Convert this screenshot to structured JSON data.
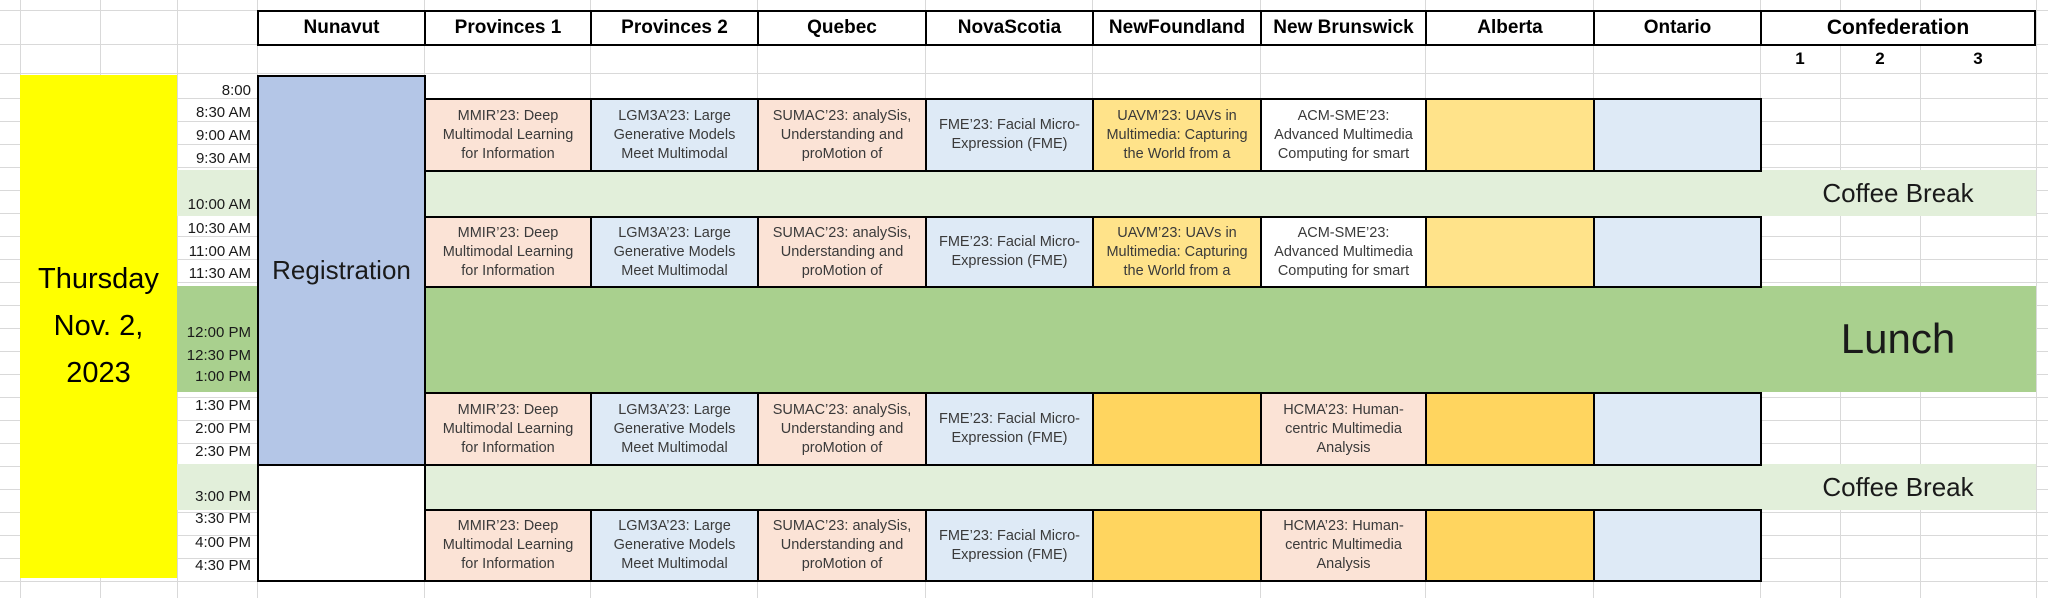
{
  "date_label": "Thursday\nNov. 2,\n2023",
  "header": {
    "rooms": [
      "Nunavut",
      "Provinces 1",
      "Provinces 2",
      "Quebec",
      "NovaScotia",
      "NewFoundland",
      "New Brunswick",
      "Alberta",
      "Ontario",
      "Confederation"
    ],
    "confederation_subcolumns": [
      "1",
      "2",
      "3"
    ]
  },
  "times": [
    "8:00",
    "8:30 AM",
    "9:00 AM",
    "9:30 AM",
    "10:00 AM",
    "10:30 AM",
    "11:00 AM",
    "11:30 AM",
    "12:00 PM",
    "12:30 PM",
    "1:00 PM",
    "1:30 PM",
    "2:00 PM",
    "2:30 PM",
    "3:00 PM",
    "3:30 PM",
    "4:00 PM",
    "4:30 PM"
  ],
  "registration_label": "Registration",
  "breaks": {
    "morning_coffee": "Coffee Break",
    "lunch": "Lunch",
    "afternoon_coffee": "Coffee Break"
  },
  "workshops": {
    "mmir": "MMIR’23: Deep\nMultimodal Learning\nfor Information",
    "lgm3a": "LGM3A’23: Large\nGenerative Models\nMeet Multimodal",
    "sumac": "SUMAC’23: analySis,\nUnderstanding and\nproMotion of",
    "fme": "FME’23: Facial Micro-\nExpression (FME)",
    "uavm": "UAVM’23: UAVs in\nMultimedia: Capturing\nthe World from a",
    "acm_sme": "ACM-SME’23:\nAdvanced Multimedia\nComputing for smart",
    "hcma": "HCMA’23: Human-\ncentric Multimedia\nAnalysis"
  },
  "colors": {
    "date_cell": "#ffff00",
    "registration": "#b4c6e7",
    "coffee_band": "#e2efda",
    "lunch_band": "#a9d08e",
    "workshop_peach": "#fbe3d6",
    "workshop_blue": "#deeaf6",
    "workshop_gold_morning": "#ffe38a",
    "workshop_gold_afternoon": "#ffd55f",
    "workshop_white": "#ffffff",
    "gridline": "#d9d9d9",
    "border": "#000000"
  }
}
